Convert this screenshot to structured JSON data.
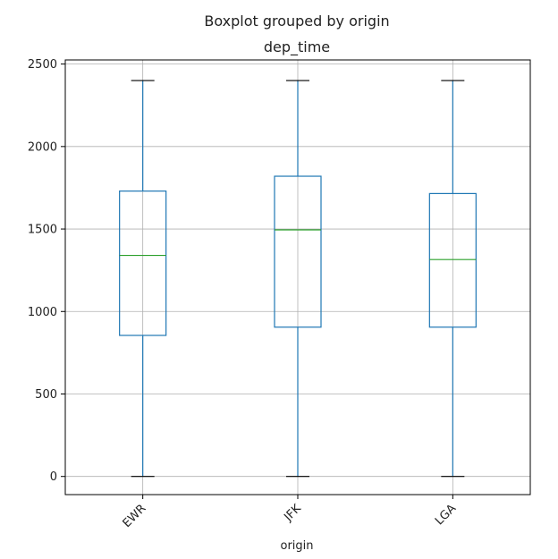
{
  "chart_data": {
    "type": "box",
    "suptitle": "Boxplot grouped by origin",
    "title": "dep_time",
    "xlabel": "origin",
    "ylabel": "",
    "ylim": [
      -110,
      2525
    ],
    "yticks": [
      0,
      500,
      1000,
      1500,
      2000,
      2500
    ],
    "grid": true,
    "categories": [
      "EWR",
      "JFK",
      "LGA"
    ],
    "boxes": [
      {
        "category": "EWR",
        "whislo": 0,
        "q1": 855,
        "med": 1340,
        "q3": 1730,
        "whishi": 2400
      },
      {
        "category": "JFK",
        "whislo": 0,
        "q1": 905,
        "med": 1495,
        "q3": 1820,
        "whishi": 2400
      },
      {
        "category": "LGA",
        "whislo": 0,
        "q1": 905,
        "med": 1315,
        "q3": 1715,
        "whishi": 2400
      }
    ],
    "colors": {
      "box": "#1f77b4",
      "median": "#2ca02c",
      "cap": "#000000",
      "grid": "#b0b0b0"
    }
  }
}
